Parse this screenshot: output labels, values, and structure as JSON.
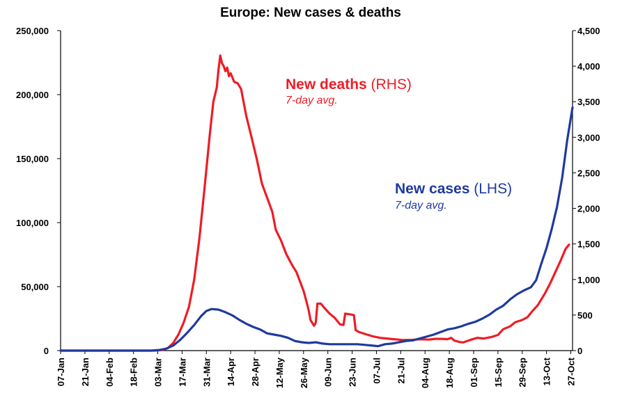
{
  "chart_data": {
    "type": "line",
    "title": "Europe: New cases & deaths",
    "x_tick_labels": [
      "07-Jan",
      "21-Jan",
      "04-Feb",
      "18-Feb",
      "03-Mar",
      "17-Mar",
      "31-Mar",
      "14-Apr",
      "28-Apr",
      "12-May",
      "26-May",
      "09-Jun",
      "23-Jun",
      "07-Jul",
      "21-Jul",
      "04-Aug",
      "18-Aug",
      "01-Sep",
      "15-Sep",
      "29-Sep",
      "13-Oct",
      "27-Oct"
    ],
    "y_left": {
      "ylim": [
        0,
        250000
      ],
      "ticks": [
        "0",
        "50,000",
        "100,000",
        "150,000",
        "200,000",
        "250,000"
      ]
    },
    "y_right": {
      "ylim": [
        0,
        4500
      ],
      "ticks": [
        "0",
        "500",
        "1,000",
        "1,500",
        "2,000",
        "2,500",
        "3,000",
        "3,500",
        "4,000",
        "4,500"
      ]
    },
    "colors": {
      "deaths": "#ee1c25",
      "cases": "#1f3a9e"
    },
    "grid": false,
    "annotations": {
      "deaths": {
        "main": "New deaths",
        "unit": " (RHS)",
        "sub": "7-day avg."
      },
      "cases": {
        "main": "New cases",
        "unit": " (LHS)",
        "sub": "7-day avg."
      }
    },
    "series": [
      {
        "name": "New deaths",
        "axis": "right",
        "points": [
          [
            "07-Jan",
            0
          ],
          [
            "01-Mar",
            0
          ],
          [
            "06-Mar",
            10
          ],
          [
            "09-Mar",
            40
          ],
          [
            "12-Mar",
            110
          ],
          [
            "15-Mar",
            230
          ],
          [
            "18-Mar",
            400
          ],
          [
            "21-Mar",
            620
          ],
          [
            "24-Mar",
            1000
          ],
          [
            "27-Mar",
            1580
          ],
          [
            "30-Mar",
            2300
          ],
          [
            "02-Apr",
            3050
          ],
          [
            "04-Apr",
            3500
          ],
          [
            "06-Apr",
            3700
          ],
          [
            "07-Apr",
            3950
          ],
          [
            "08-Apr",
            4150
          ],
          [
            "09-Apr",
            4040
          ],
          [
            "10-Apr",
            4000
          ],
          [
            "11-Apr",
            3930
          ],
          [
            "12-Apr",
            3980
          ],
          [
            "13-Apr",
            3860
          ],
          [
            "14-Apr",
            3900
          ],
          [
            "16-Apr",
            3780
          ],
          [
            "18-Apr",
            3760
          ],
          [
            "20-Apr",
            3680
          ],
          [
            "23-Apr",
            3300
          ],
          [
            "26-Apr",
            3000
          ],
          [
            "29-Apr",
            2700
          ],
          [
            "02-May",
            2350
          ],
          [
            "05-May",
            2150
          ],
          [
            "08-May",
            1950
          ],
          [
            "10-May",
            1700
          ],
          [
            "13-May",
            1550
          ],
          [
            "16-May",
            1360
          ],
          [
            "19-May",
            1220
          ],
          [
            "22-May",
            1100
          ],
          [
            "24-May",
            970
          ],
          [
            "26-May",
            840
          ],
          [
            "28-May",
            660
          ],
          [
            "29-May",
            560
          ],
          [
            "30-May",
            430
          ],
          [
            "01-Jun",
            350
          ],
          [
            "02-Jun",
            390
          ],
          [
            "03-Jun",
            660
          ],
          [
            "05-Jun",
            660
          ],
          [
            "07-Jun",
            600
          ],
          [
            "10-Jun",
            520
          ],
          [
            "13-Jun",
            460
          ],
          [
            "16-Jun",
            370
          ],
          [
            "18-Jun",
            360
          ],
          [
            "19-Jun",
            520
          ],
          [
            "22-Jun",
            510
          ],
          [
            "24-Jun",
            500
          ],
          [
            "25-Jun",
            290
          ],
          [
            "27-Jun",
            260
          ],
          [
            "01-Jul",
            230
          ],
          [
            "05-Jul",
            200
          ],
          [
            "09-Jul",
            180
          ],
          [
            "13-Jul",
            170
          ],
          [
            "17-Jul",
            160
          ],
          [
            "22-Jul",
            150
          ],
          [
            "27-Jul",
            150
          ],
          [
            "01-Aug",
            160
          ],
          [
            "06-Aug",
            155
          ],
          [
            "10-Aug",
            165
          ],
          [
            "14-Aug",
            165
          ],
          [
            "17-Aug",
            160
          ],
          [
            "19-Aug",
            180
          ],
          [
            "21-Aug",
            140
          ],
          [
            "24-Aug",
            120
          ],
          [
            "26-Aug",
            115
          ],
          [
            "30-Aug",
            150
          ],
          [
            "03-Sep",
            180
          ],
          [
            "07-Sep",
            170
          ],
          [
            "11-Sep",
            190
          ],
          [
            "15-Sep",
            220
          ],
          [
            "18-Sep",
            300
          ],
          [
            "22-Sep",
            340
          ],
          [
            "25-Sep",
            400
          ],
          [
            "29-Sep",
            430
          ],
          [
            "02-Oct",
            470
          ],
          [
            "05-Oct",
            560
          ],
          [
            "08-Oct",
            640
          ],
          [
            "12-Oct",
            800
          ],
          [
            "15-Oct",
            940
          ],
          [
            "18-Oct",
            1100
          ],
          [
            "21-Oct",
            1260
          ],
          [
            "24-Oct",
            1430
          ],
          [
            "26-Oct",
            1490
          ]
        ]
      },
      {
        "name": "New cases",
        "axis": "left",
        "points": [
          [
            "07-Jan",
            0
          ],
          [
            "28-Feb",
            0
          ],
          [
            "04-Mar",
            500
          ],
          [
            "08-Mar",
            1500
          ],
          [
            "12-Mar",
            4000
          ],
          [
            "16-Mar",
            8500
          ],
          [
            "20-Mar",
            14000
          ],
          [
            "24-Mar",
            20000
          ],
          [
            "28-Mar",
            27000
          ],
          [
            "31-Mar",
            31000
          ],
          [
            "03-Apr",
            32500
          ],
          [
            "07-Apr",
            32000
          ],
          [
            "11-Apr",
            30000
          ],
          [
            "15-Apr",
            27500
          ],
          [
            "19-Apr",
            24000
          ],
          [
            "23-Apr",
            21000
          ],
          [
            "27-Apr",
            18500
          ],
          [
            "01-May",
            16500
          ],
          [
            "05-May",
            13500
          ],
          [
            "09-May",
            12500
          ],
          [
            "13-May",
            11500
          ],
          [
            "17-May",
            10000
          ],
          [
            "21-May",
            7500
          ],
          [
            "25-May",
            6500
          ],
          [
            "29-May",
            6000
          ],
          [
            "02-Jun",
            6500
          ],
          [
            "06-Jun",
            5500
          ],
          [
            "10-Jun",
            5000
          ],
          [
            "14-Jun",
            5000
          ],
          [
            "18-Jun",
            5000
          ],
          [
            "22-Jun",
            5000
          ],
          [
            "26-Jun",
            5000
          ],
          [
            "30-Jun",
            4500
          ],
          [
            "04-Jul",
            4000
          ],
          [
            "08-Jul",
            3500
          ],
          [
            "12-Jul",
            5000
          ],
          [
            "16-Jul",
            5500
          ],
          [
            "20-Jul",
            6500
          ],
          [
            "24-Jul",
            7500
          ],
          [
            "28-Jul",
            8000
          ],
          [
            "01-Aug",
            9500
          ],
          [
            "05-Aug",
            11000
          ],
          [
            "09-Aug",
            12500
          ],
          [
            "13-Aug",
            14500
          ],
          [
            "17-Aug",
            16500
          ],
          [
            "21-Aug",
            17500
          ],
          [
            "25-Aug",
            19000
          ],
          [
            "29-Aug",
            21000
          ],
          [
            "02-Sep",
            22500
          ],
          [
            "06-Sep",
            25000
          ],
          [
            "10-Sep",
            28000
          ],
          [
            "14-Sep",
            32000
          ],
          [
            "18-Sep",
            35000
          ],
          [
            "22-Sep",
            40000
          ],
          [
            "26-Sep",
            44000
          ],
          [
            "30-Sep",
            47000
          ],
          [
            "04-Oct",
            49500
          ],
          [
            "07-Oct",
            55000
          ],
          [
            "10-Oct",
            68000
          ],
          [
            "13-Oct",
            80000
          ],
          [
            "16-Oct",
            95000
          ],
          [
            "19-Oct",
            112000
          ],
          [
            "22-Oct",
            135000
          ],
          [
            "25-Oct",
            165000
          ],
          [
            "28-Oct",
            190000
          ]
        ]
      }
    ]
  }
}
